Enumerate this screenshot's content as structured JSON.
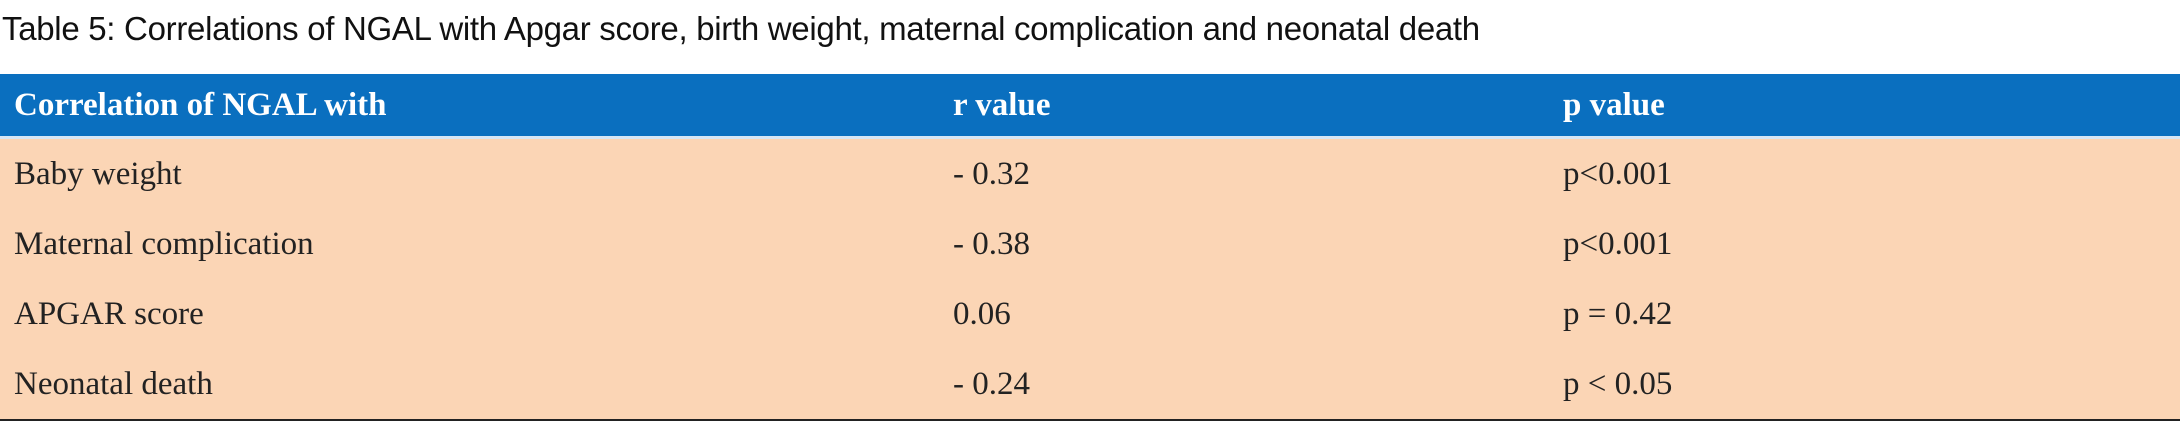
{
  "table": {
    "title": "Table 5: Correlations of NGAL with Apgar score, birth weight, maternal complication and neonatal death",
    "header": [
      "Correlation of NGAL with",
      "r value",
      "p value"
    ],
    "rows": [
      [
        "Baby weight",
        "- 0.32",
        "p<0.001"
      ],
      [
        "Maternal complication",
        "- 0.38",
        "p<0.001"
      ],
      [
        "APGAR score",
        "0.06",
        "p = 0.42"
      ],
      [
        "Neonatal death",
        "- 0.24",
        "p < 0.05"
      ]
    ]
  }
}
